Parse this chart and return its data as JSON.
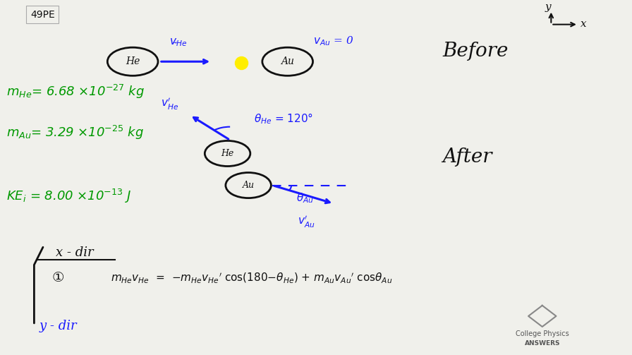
{
  "bg_color": "#f0f0eb",
  "title_box": "49PE",
  "blue_color": "#1a1aff",
  "green_color": "#009900",
  "black_color": "#111111",
  "yellow_color": "#ffee00",
  "before_label": "Before",
  "after_label": "After"
}
